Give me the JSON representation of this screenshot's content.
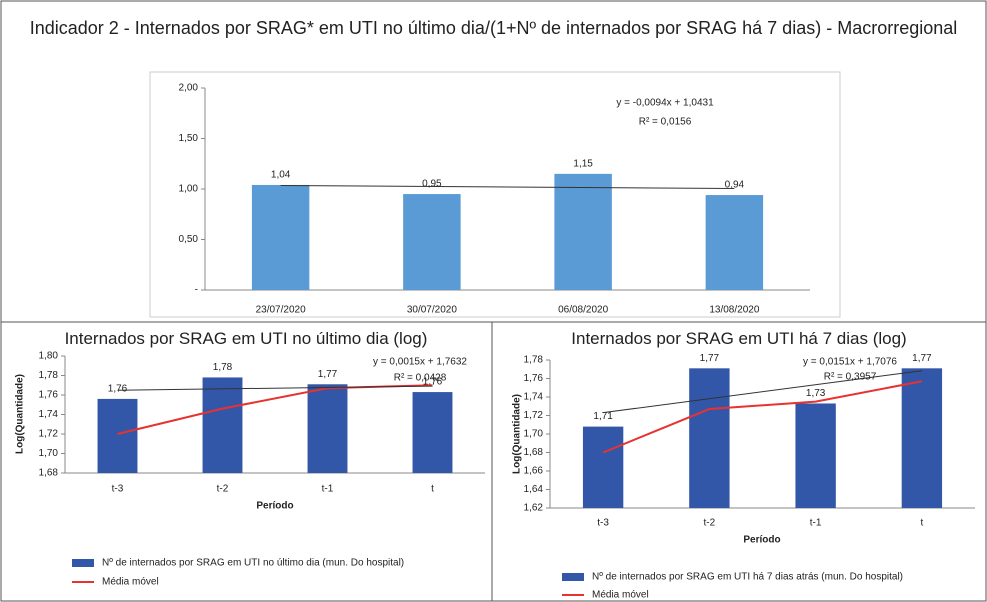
{
  "chart_data": [
    {
      "type": "bar",
      "title": "Indicador 2 - Internados por SRAG* em UTI no último dia/(1+Nº de internados por SRAG há 7 dias) - Macrorregional",
      "categories": [
        "23/07/2020",
        "30/07/2020",
        "06/08/2020",
        "13/08/2020"
      ],
      "values": [
        1.04,
        0.95,
        1.15,
        0.94
      ],
      "value_labels": [
        "1,04",
        "0,95",
        "1,15",
        "0,94"
      ],
      "color": "#5b9bd5",
      "ylim": [
        0,
        2
      ],
      "yticks": [
        {
          "value": 0,
          "label": "-"
        },
        {
          "value": 0.5,
          "label": "0,50"
        },
        {
          "value": 1,
          "label": "1,00"
        },
        {
          "value": 1.5,
          "label": "1,50"
        },
        {
          "value": 2,
          "label": "2,00"
        }
      ],
      "trendline": true,
      "annotations": [
        "y = -0,0094x + 1,0431",
        "R² = 0,0156"
      ]
    },
    {
      "type": "bar",
      "title": "Internados por SRAG em UTI no último dia (log)",
      "categories": [
        "t-3",
        "t-2",
        "t-1",
        "t"
      ],
      "x_label": "Período",
      "y_label": "Log(Quantidade)",
      "series": [
        {
          "name": "Nº de internados por SRAG em UTI no último dia (mun. Do hospital)",
          "type": "bar",
          "color": "#3357a8",
          "values": [
            1.756,
            1.778,
            1.771,
            1.763
          ],
          "value_labels": [
            "1,76",
            "1,78",
            "1,77",
            "1,76"
          ]
        },
        {
          "name": "Média móvel",
          "type": "line",
          "color": "#e8322f",
          "values": [
            1.72,
            1.746,
            1.767,
            1.77
          ]
        }
      ],
      "ylim": [
        1.68,
        1.8
      ],
      "yticks": [
        {
          "value": 1.68,
          "label": "1,68"
        },
        {
          "value": 1.7,
          "label": "1,70"
        },
        {
          "value": 1.72,
          "label": "1,72"
        },
        {
          "value": 1.74,
          "label": "1,74"
        },
        {
          "value": 1.76,
          "label": "1,76"
        },
        {
          "value": 1.78,
          "label": "1,78"
        },
        {
          "value": 1.8,
          "label": "1,80"
        }
      ],
      "trendline": true,
      "annotations": [
        "y = 0,0015x + 1,7632",
        "R² = 0,0428"
      ]
    },
    {
      "type": "bar",
      "title": "Internados por SRAG em UTI há 7 dias (log)",
      "categories": [
        "t-3",
        "t-2",
        "t-1",
        "t"
      ],
      "x_label": "Período",
      "y_label": "Log(Quantidade)",
      "series": [
        {
          "name": "Nº de internados por SRAG em UTI há 7 dias atrás (mun. Do hospital)",
          "type": "bar",
          "color": "#3357a8",
          "values": [
            1.708,
            1.771,
            1.733,
            1.771
          ],
          "value_labels": [
            "1,71",
            "1,77",
            "1,73",
            "1,77"
          ]
        },
        {
          "name": "Média móvel",
          "type": "line",
          "color": "#e8322f",
          "values": [
            1.68,
            1.727,
            1.735,
            1.757
          ]
        }
      ],
      "ylim": [
        1.62,
        1.78
      ],
      "yticks": [
        {
          "value": 1.62,
          "label": "1,62"
        },
        {
          "value": 1.64,
          "label": "1,64"
        },
        {
          "value": 1.66,
          "label": "1,66"
        },
        {
          "value": 1.68,
          "label": "1,68"
        },
        {
          "value": 1.7,
          "label": "1,70"
        },
        {
          "value": 1.72,
          "label": "1,72"
        },
        {
          "value": 1.74,
          "label": "1,74"
        },
        {
          "value": 1.76,
          "label": "1,76"
        },
        {
          "value": 1.78,
          "label": "1,78"
        }
      ],
      "trendline": true,
      "annotations": [
        "y = 0,0151x + 1,7076",
        "R² = 0,3957"
      ]
    }
  ]
}
